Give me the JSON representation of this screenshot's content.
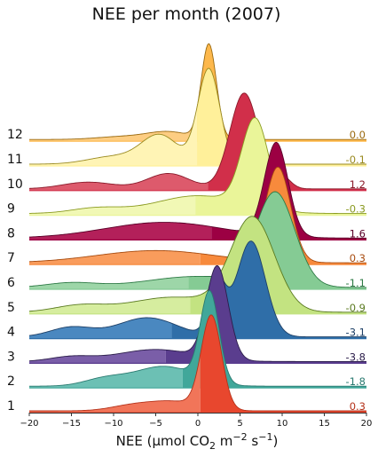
{
  "chart_data": {
    "type": "ridgeline",
    "title": "NEE per month (2007)",
    "xlabel_parts": {
      "prefix": "NEE (μmol CO",
      "co2_sub": "2",
      "unit_m": " m",
      "m_exp": "−2",
      "unit_s": " s",
      "s_exp": "−1",
      "suffix": ")"
    },
    "xlim": [
      -20,
      20
    ],
    "xticks": [
      -20,
      -15,
      -10,
      -5,
      0,
      5,
      10,
      15,
      20
    ],
    "xtick_labels": [
      "−20",
      "−15",
      "−10",
      "−5",
      "0",
      "5",
      "10",
      "15",
      "20"
    ],
    "series": [
      {
        "name": "1",
        "value_label": "0.3",
        "mean": 0.3,
        "color": "#e8472e",
        "light": "#f17559",
        "text_color": "#b5321a",
        "components": [
          {
            "mu": 1.6,
            "s": 1.2,
            "w": 1.0
          },
          {
            "mu": -3,
            "s": 3,
            "w": 0.1
          },
          {
            "mu": -8,
            "s": 2.5,
            "w": 0.05
          }
        ]
      },
      {
        "name": "2",
        "value_label": "-1.8",
        "mean": -1.8,
        "color": "#41a79a",
        "light": "#6cc0b4",
        "text_color": "#2a7a70",
        "components": [
          {
            "mu": 1.4,
            "s": 1.1,
            "w": 1.0
          },
          {
            "mu": -4,
            "s": 3.5,
            "w": 0.22
          },
          {
            "mu": -11,
            "s": 2.5,
            "w": 0.08
          }
        ]
      },
      {
        "name": "3",
        "value_label": "-3.8",
        "mean": -3.8,
        "color": "#5a3d8e",
        "light": "#7a5ea8",
        "text_color": "#2b1d4a",
        "components": [
          {
            "mu": 2.3,
            "s": 1.3,
            "w": 1.0
          },
          {
            "mu": -5,
            "s": 4.5,
            "w": 0.13
          },
          {
            "mu": -15,
            "s": 2.5,
            "w": 0.05
          }
        ]
      },
      {
        "name": "4",
        "value_label": "-3.1",
        "mean": -3.1,
        "color": "#2f6ea8",
        "light": "#4a88c0",
        "text_color": "#1d3f66",
        "components": [
          {
            "mu": 6.3,
            "s": 1.7,
            "w": 1.0
          },
          {
            "mu": 2.3,
            "s": 1.0,
            "w": 0.55
          },
          {
            "mu": -6,
            "s": 3.5,
            "w": 0.2
          },
          {
            "mu": -15,
            "s": 2.5,
            "w": 0.1
          }
        ]
      },
      {
        "name": "5",
        "value_label": "-0.9",
        "mean": -0.9,
        "color": "#c3e381",
        "light": "#d6ed9f",
        "text_color": "#5a7a20",
        "components": [
          {
            "mu": 6.5,
            "s": 2.6,
            "w": 1.0
          },
          {
            "mu": -3,
            "s": 5,
            "w": 0.16
          },
          {
            "mu": -14,
            "s": 3,
            "w": 0.07
          }
        ]
      },
      {
        "name": "6",
        "value_label": "-1.1",
        "mean": -1.1,
        "color": "#85cb94",
        "light": "#9dd6a8",
        "text_color": "#2e7a45",
        "components": [
          {
            "mu": 9.2,
            "s": 2.3,
            "w": 1.0
          },
          {
            "mu": 0,
            "s": 6,
            "w": 0.12
          },
          {
            "mu": -15,
            "s": 3,
            "w": 0.05
          }
        ]
      },
      {
        "name": "7",
        "value_label": "0.3",
        "mean": 0.3,
        "color": "#f78a3c",
        "light": "#f99c5c",
        "text_color": "#a84c10",
        "components": [
          {
            "mu": 9.5,
            "s": 1.5,
            "w": 1.0
          },
          {
            "mu": -5,
            "s": 7,
            "w": 0.13
          }
        ]
      },
      {
        "name": "8",
        "value_label": "1.6",
        "mean": 1.6,
        "color": "#9c0043",
        "light": "#b3205a",
        "text_color": "#5a0028",
        "components": [
          {
            "mu": 9.3,
            "s": 1.4,
            "w": 1.0
          },
          {
            "mu": -4,
            "s": 7,
            "w": 0.17
          }
        ]
      },
      {
        "name": "9",
        "value_label": "-0.3",
        "mean": -0.3,
        "color": "#eaf599",
        "light": "#f1f8b5",
        "text_color": "#8a9a20",
        "components": [
          {
            "mu": 6.8,
            "s": 1.6,
            "w": 1.0
          },
          {
            "mu": 0,
            "s": 5,
            "w": 0.2
          },
          {
            "mu": -12,
            "s": 3,
            "w": 0.06
          }
        ]
      },
      {
        "name": "10",
        "value_label": "1.2",
        "mean": 1.2,
        "color": "#d12f4a",
        "light": "#dd5a6c",
        "text_color": "#8a1a2a",
        "components": [
          {
            "mu": 5.5,
            "s": 1.7,
            "w": 1.0
          },
          {
            "mu": -3.5,
            "s": 2.5,
            "w": 0.16
          },
          {
            "mu": -13,
            "s": 3,
            "w": 0.07
          },
          {
            "mu": 10,
            "s": 1.0,
            "w": 0.12
          }
        ]
      },
      {
        "name": "11",
        "value_label": "-0.1",
        "mean": -0.1,
        "color": "#fff09a",
        "light": "#fff4b5",
        "text_color": "#9a8a20",
        "components": [
          {
            "mu": 1.3,
            "s": 1.3,
            "w": 1.0
          },
          {
            "mu": -4.5,
            "s": 2.2,
            "w": 0.3
          },
          {
            "mu": -10,
            "s": 3,
            "w": 0.08
          }
        ]
      },
      {
        "name": "12",
        "value_label": "0.0",
        "mean": 0.0,
        "color": "#fdb84c",
        "light": "#fdcd82",
        "text_color": "#9a6a10",
        "components": [
          {
            "mu": 1.3,
            "s": 0.9,
            "w": 1.0
          },
          {
            "mu": -3.5,
            "s": 2.5,
            "w": 0.08
          },
          {
            "mu": -9,
            "s": 3,
            "w": 0.03
          }
        ]
      }
    ]
  }
}
